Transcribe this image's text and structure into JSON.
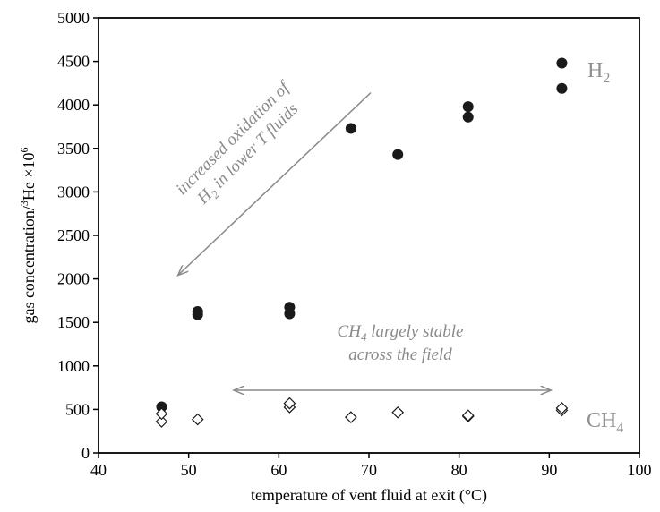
{
  "chart_data": {
    "type": "scatter",
    "xlabel": "temperature of vent fluid at exit (°C)",
    "ylabel_main": "gas concentration/",
    "ylabel_sup": "3",
    "ylabel_he": "He ×10",
    "ylabel_exp": "6",
    "xlim": [
      40,
      100
    ],
    "ylim": [
      0,
      5000
    ],
    "x_ticks": [
      "40",
      "50",
      "60",
      "70",
      "80",
      "90",
      "100"
    ],
    "y_ticks": [
      "0",
      "500",
      "1000",
      "1500",
      "2000",
      "2500",
      "3000",
      "3500",
      "4000",
      "4500",
      "5000"
    ],
    "grid": false,
    "series": [
      {
        "marker": "filled-circle",
        "color": "#1a1a1a",
        "points": [
          {
            "x": 47,
            "y": 530
          },
          {
            "x": 51,
            "y": 1590
          },
          {
            "x": 51,
            "y": 1625
          },
          {
            "x": 61.2,
            "y": 1600
          },
          {
            "x": 61.2,
            "y": 1675
          },
          {
            "x": 68,
            "y": 3730
          },
          {
            "x": 73.2,
            "y": 3430
          },
          {
            "x": 81,
            "y": 3860
          },
          {
            "x": 81,
            "y": 3980
          },
          {
            "x": 91.4,
            "y": 4190
          },
          {
            "x": 91.4,
            "y": 4480
          }
        ]
      },
      {
        "marker": "open-diamond",
        "color": "#1a1a1a",
        "points": [
          {
            "x": 47,
            "y": 360
          },
          {
            "x": 47,
            "y": 450
          },
          {
            "x": 51,
            "y": 385
          },
          {
            "x": 61.2,
            "y": 525
          },
          {
            "x": 61.2,
            "y": 570
          },
          {
            "x": 68,
            "y": 410
          },
          {
            "x": 73.2,
            "y": 465
          },
          {
            "x": 81,
            "y": 420
          },
          {
            "x": 81,
            "y": 430
          },
          {
            "x": 91.4,
            "y": 490
          },
          {
            "x": 91.4,
            "y": 515
          }
        ]
      }
    ],
    "labels": {
      "h2": {
        "text": "H",
        "sub": "2"
      },
      "ch4": {
        "text": "CH",
        "sub": "4"
      },
      "h2_note_line1": "increased oxidation of",
      "h2_note_line2_pre": "H",
      "h2_note_line2_sub": "2",
      "h2_note_line2_post": " in lower T fluids",
      "ch4_note_line1_pre": "CH",
      "ch4_note_line1_sub": "4",
      "ch4_note_line1_post": " largely stable",
      "ch4_note_line2": "across the field"
    },
    "arrows": [
      {
        "from": {
          "x": 70.2,
          "y": 4140
        },
        "to": {
          "x": 48.8,
          "y": 2040
        },
        "heads": "end"
      },
      {
        "from": {
          "x": 55,
          "y": 720
        },
        "to": {
          "x": 90.2,
          "y": 720
        },
        "heads": "both"
      }
    ],
    "annotation_color": "#8a8a8a"
  }
}
